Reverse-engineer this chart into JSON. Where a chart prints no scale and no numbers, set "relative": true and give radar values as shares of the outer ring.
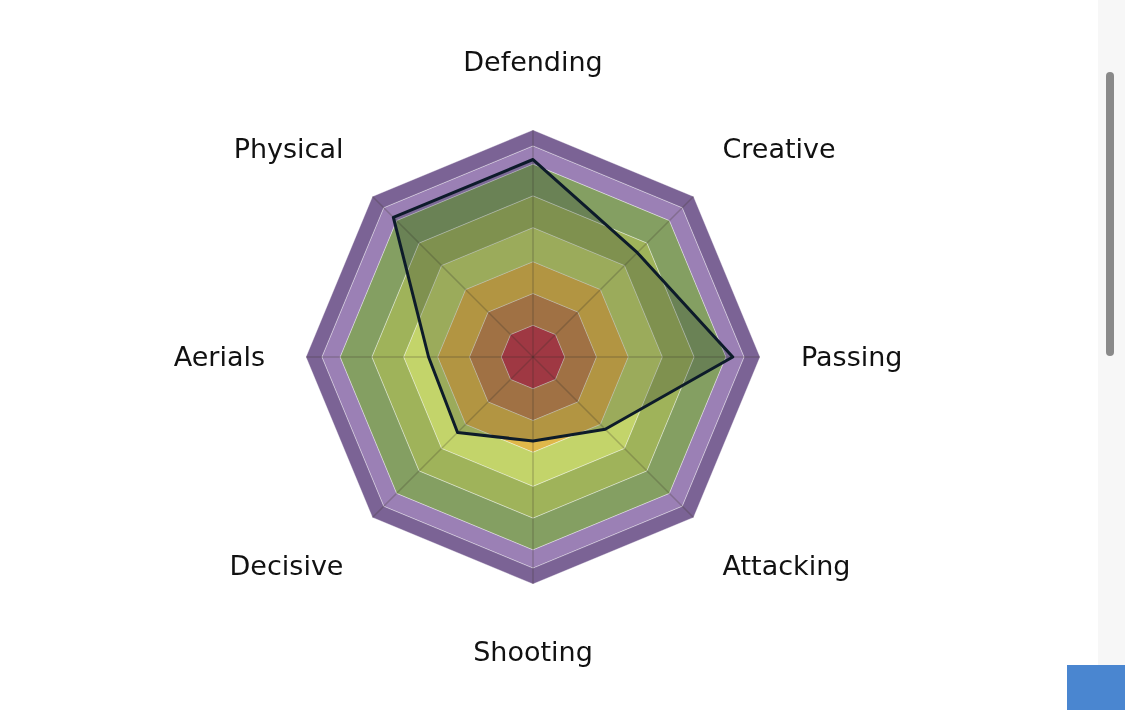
{
  "chart_data": {
    "type": "radar",
    "relative": true,
    "grid": true,
    "categories": [
      "Defending",
      "Creative",
      "Passing",
      "Attacking",
      "Shooting",
      "Decisive",
      "Aerials",
      "Physical"
    ],
    "series": [
      {
        "color": "#0d1b2a",
        "values": [
          0.87,
          0.65,
          0.88,
          0.45,
          0.37,
          0.47,
          0.46,
          0.87
        ]
      }
    ]
  }
}
